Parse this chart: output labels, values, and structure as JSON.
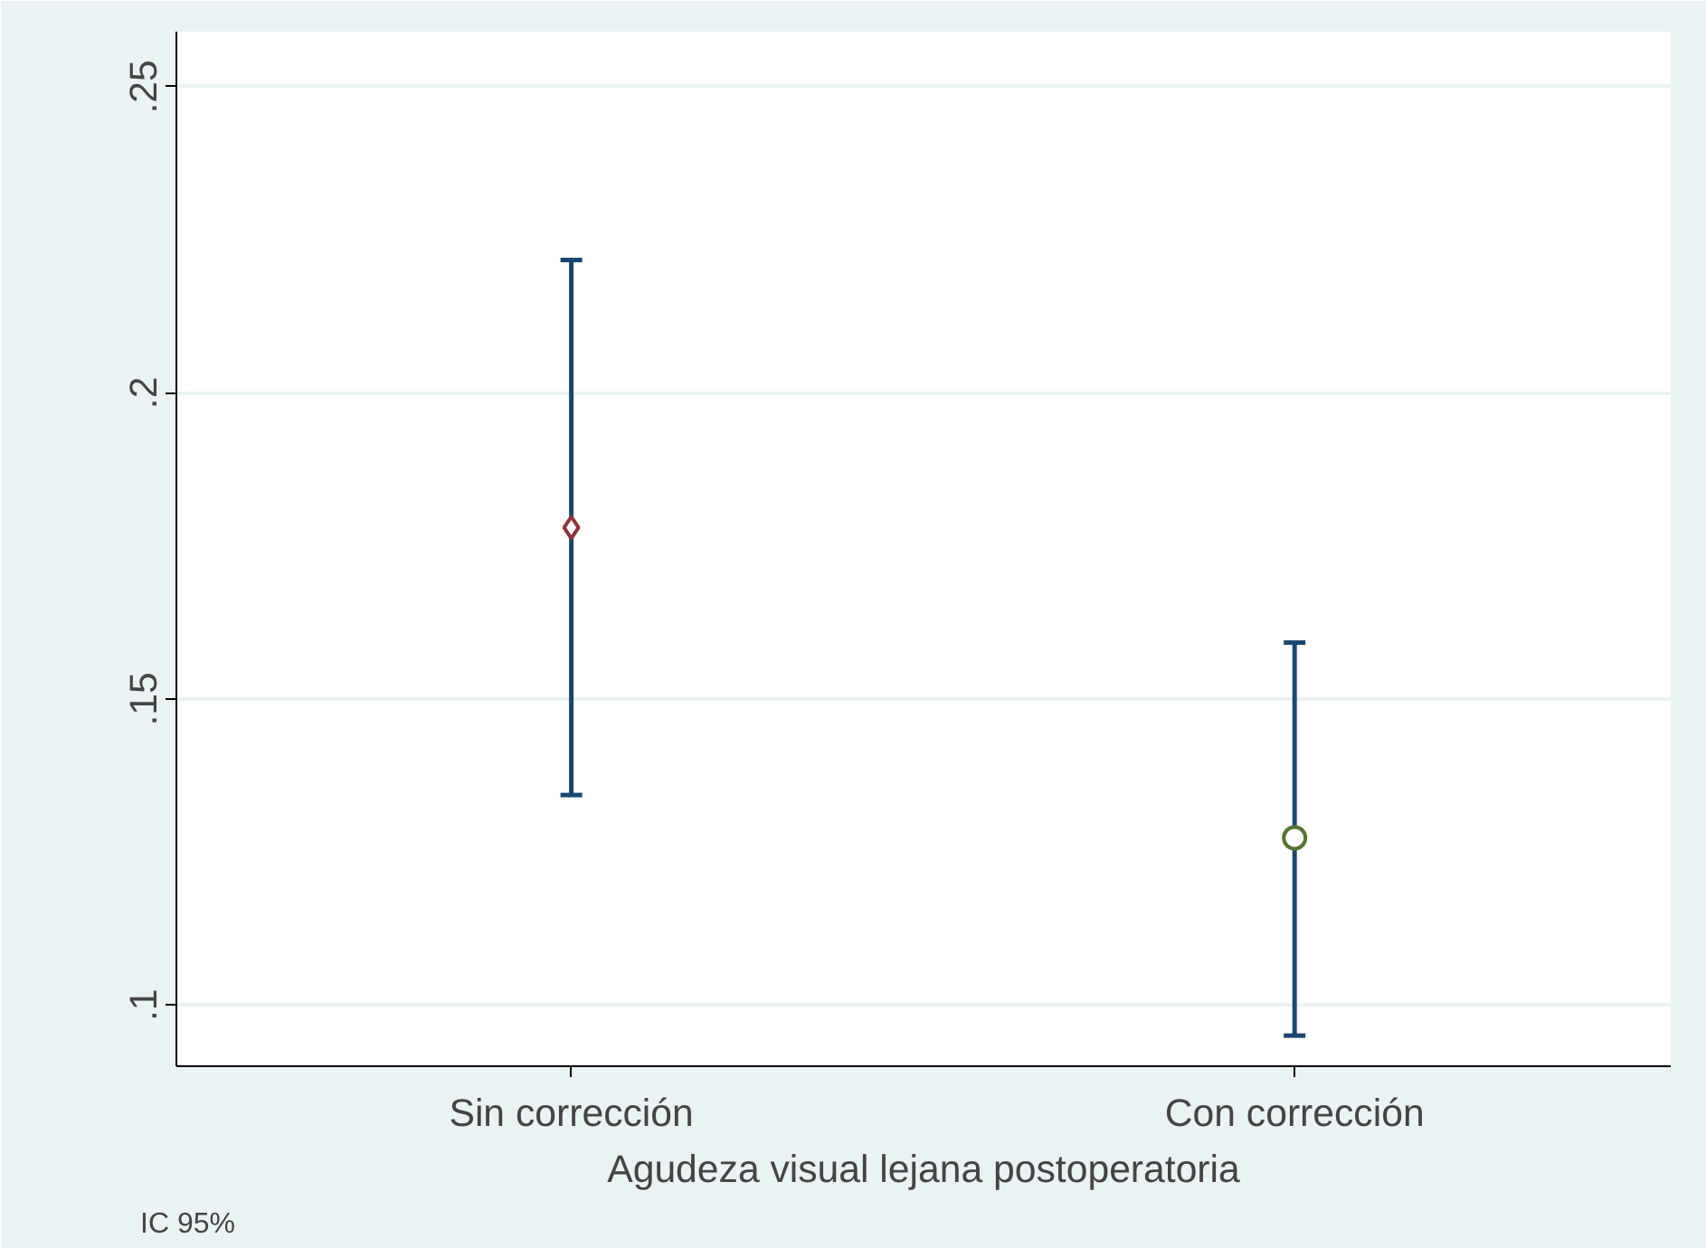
{
  "chart_data": {
    "type": "scatter",
    "xlabel": "Agudeza visual lejana postoperatoria",
    "categories": [
      "Sin corrección",
      "Con corrección"
    ],
    "series": [
      {
        "color": "#90353b",
        "marker": "diamond",
        "values": [
          0.178,
          null
        ],
        "errors": [
          [
            0.1343,
            0.2217
          ],
          null
        ]
      },
      {
        "color": "#55752f",
        "marker": "circle",
        "values": [
          null,
          0.1273
        ],
        "errors": [
          null,
          [
            0.095,
            0.1592
          ]
        ]
      }
    ],
    "ylim": [
      0.09,
      0.259
    ],
    "yticks": [
      {
        "value": 0.1,
        "label": ".1"
      },
      {
        "value": 0.15,
        "label": ".15"
      },
      {
        "value": 0.2,
        "label": ".2"
      },
      {
        "value": 0.25,
        "label": ".25"
      }
    ],
    "grid": "y",
    "annotations": [
      "IC 95%"
    ]
  }
}
